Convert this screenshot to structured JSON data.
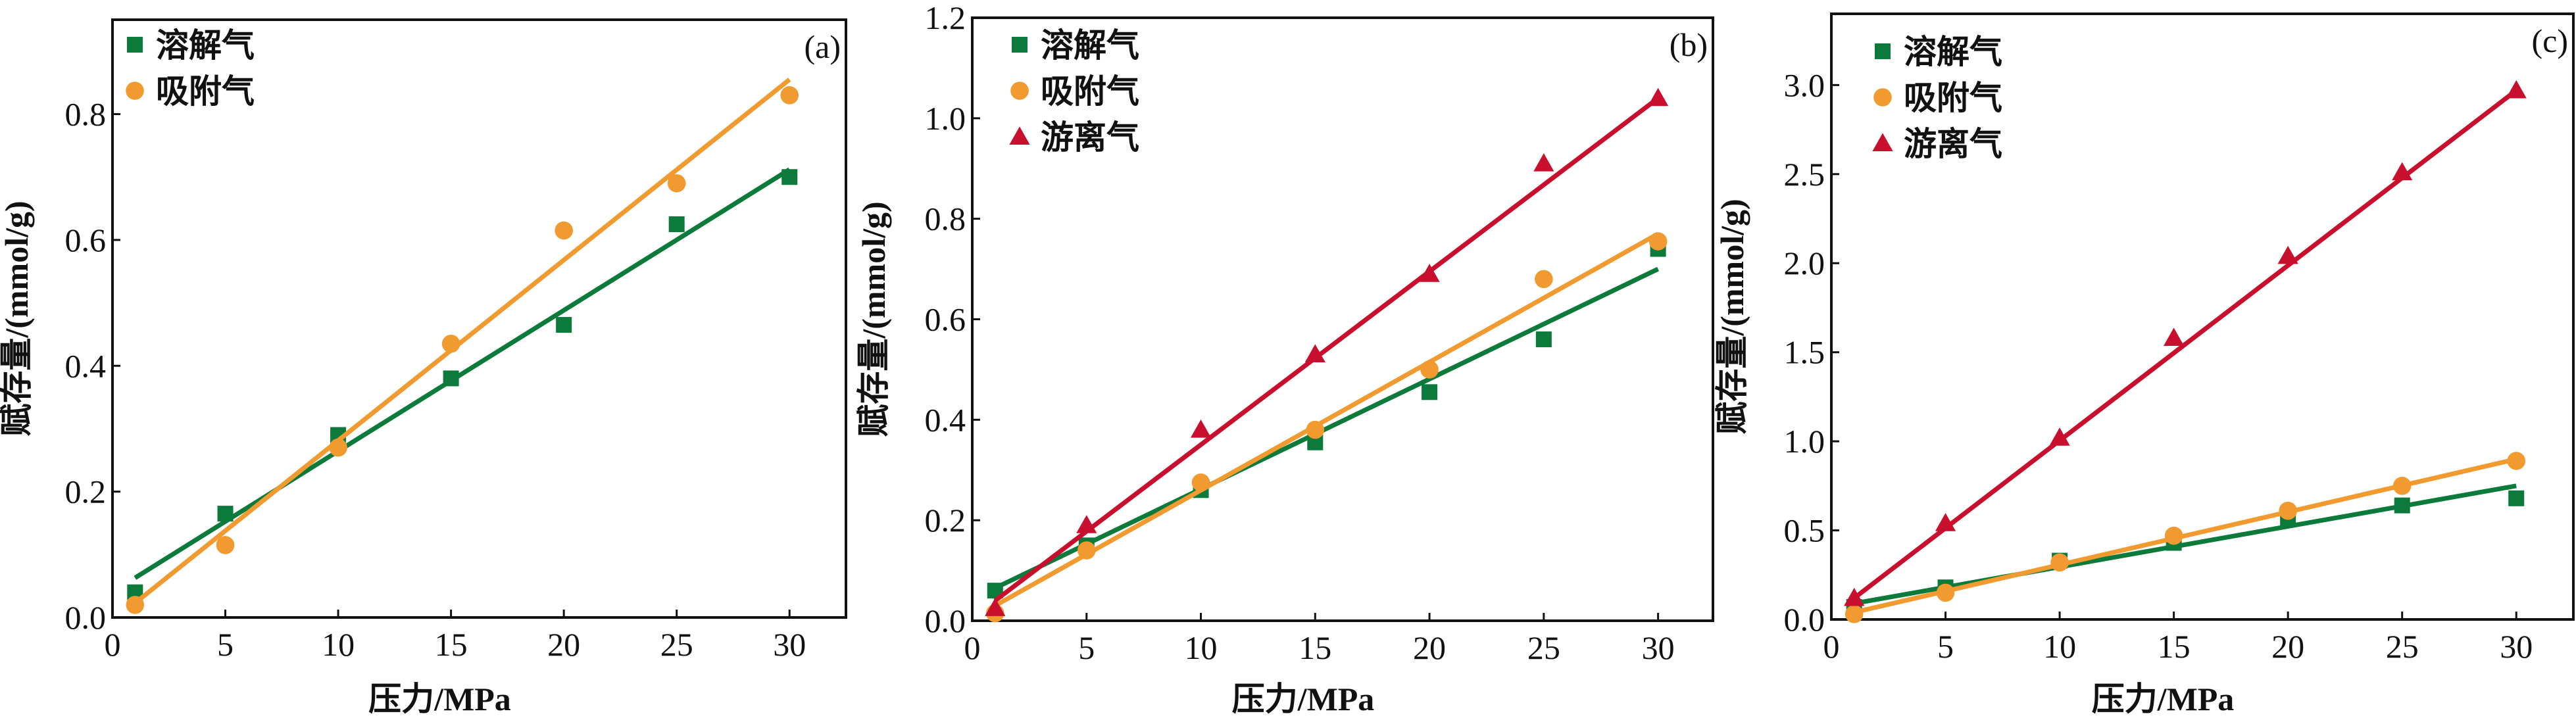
{
  "colors": {
    "dissolved": "#0b7a3b",
    "adsorbed": "#f09a30",
    "free": "#c8102e",
    "axis": "#111111"
  },
  "chart_data": [
    {
      "type": "scatter",
      "panel_label": "(a)",
      "xlabel": "压力/MPa",
      "ylabel": "赋存量/(mmol/g)",
      "xlim": [
        0,
        32.5
      ],
      "ylim": [
        0,
        0.95
      ],
      "xticks": [
        "0",
        "5",
        "10",
        "15",
        "20",
        "25",
        "30"
      ],
      "xtick_values": [
        0,
        5,
        10,
        15,
        20,
        25,
        30
      ],
      "yticks": [
        "0.0",
        "0.2",
        "0.4",
        "0.6",
        "0.8"
      ],
      "ytick_values": [
        0,
        0.2,
        0.4,
        0.6,
        0.8
      ],
      "legend_position": "top-left",
      "series": [
        {
          "name": "溶解气",
          "key": "dissolved",
          "marker": "square",
          "x": [
            1,
            5,
            10,
            15,
            20,
            25,
            30
          ],
          "y": [
            0.04,
            0.165,
            0.29,
            0.38,
            0.465,
            0.625,
            0.7
          ],
          "fit": [
            [
              1,
              0.063
            ],
            [
              30,
              0.712
            ]
          ]
        },
        {
          "name": "吸附气",
          "key": "adsorbed",
          "marker": "circle",
          "x": [
            1,
            5,
            10,
            15,
            20,
            25,
            30
          ],
          "y": [
            0.02,
            0.115,
            0.27,
            0.435,
            0.615,
            0.69,
            0.83
          ],
          "fit": [
            [
              1,
              0.023
            ],
            [
              30,
              0.855
            ]
          ]
        }
      ]
    },
    {
      "type": "scatter",
      "panel_label": "(b)",
      "xlabel": "压力/MPa",
      "ylabel": "赋存量/(mmol/g)",
      "xlim": [
        0,
        32.4
      ],
      "ylim": [
        0,
        1.2
      ],
      "xticks": [
        "0",
        "5",
        "10",
        "15",
        "20",
        "25",
        "30"
      ],
      "xtick_values": [
        0,
        5,
        10,
        15,
        20,
        25,
        30
      ],
      "yticks": [
        "0.0",
        "0.2",
        "0.4",
        "0.6",
        "0.8",
        "1.0",
        "1.2"
      ],
      "ytick_values": [
        0,
        0.2,
        0.4,
        0.6,
        0.8,
        1.0,
        1.2
      ],
      "legend_position": "top-left",
      "series": [
        {
          "name": "溶解气",
          "key": "dissolved",
          "marker": "square",
          "x": [
            1,
            5,
            10,
            15,
            20,
            25,
            30
          ],
          "y": [
            0.06,
            0.15,
            0.26,
            0.355,
            0.455,
            0.56,
            0.74
          ],
          "fit": [
            [
              1,
              0.065
            ],
            [
              30,
              0.7
            ]
          ]
        },
        {
          "name": "吸附气",
          "key": "adsorbed",
          "marker": "circle",
          "x": [
            1,
            5,
            10,
            15,
            20,
            25,
            30
          ],
          "y": [
            0.015,
            0.14,
            0.275,
            0.38,
            0.5,
            0.68,
            0.755
          ],
          "fit": [
            [
              1,
              0.03
            ],
            [
              30,
              0.77
            ]
          ]
        },
        {
          "name": "游离气",
          "key": "free",
          "marker": "triangle",
          "x": [
            1,
            5,
            10,
            15,
            20,
            25,
            30
          ],
          "y": [
            0.025,
            0.19,
            0.38,
            0.53,
            0.69,
            0.91,
            1.04
          ],
          "fit": [
            [
              1,
              0.04
            ],
            [
              30,
              1.04
            ]
          ]
        }
      ]
    },
    {
      "type": "scatter",
      "panel_label": "(c)",
      "xlabel": "压力/MPa",
      "ylabel": "赋存量/(mmol/g)",
      "xlim": [
        0,
        32.5
      ],
      "ylim": [
        0,
        3.4
      ],
      "xticks": [
        "0",
        "5",
        "10",
        "15",
        "20",
        "25",
        "30"
      ],
      "xtick_values": [
        0,
        5,
        10,
        15,
        20,
        25,
        30
      ],
      "yticks": [
        "0.0",
        "0.5",
        "1.0",
        "1.5",
        "2.0",
        "2.5",
        "3.0"
      ],
      "ytick_values": [
        0,
        0.5,
        1.0,
        1.5,
        2.0,
        2.5,
        3.0
      ],
      "legend_position": "top-left",
      "series": [
        {
          "name": "溶解气",
          "key": "dissolved",
          "marker": "square",
          "x": [
            1,
            5,
            10,
            15,
            20,
            25,
            30
          ],
          "y": [
            0.07,
            0.18,
            0.33,
            0.43,
            0.57,
            0.64,
            0.68
          ],
          "fit": [
            [
              1,
              0.09
            ],
            [
              30,
              0.75
            ]
          ]
        },
        {
          "name": "吸附气",
          "key": "adsorbed",
          "marker": "circle",
          "x": [
            1,
            5,
            10,
            15,
            20,
            25,
            30
          ],
          "y": [
            0.03,
            0.15,
            0.32,
            0.47,
            0.61,
            0.75,
            0.89
          ],
          "fit": [
            [
              1,
              0.04
            ],
            [
              30,
              0.9
            ]
          ]
        },
        {
          "name": "游离气",
          "key": "free",
          "marker": "triangle",
          "x": [
            1,
            5,
            10,
            15,
            20,
            25,
            30
          ],
          "y": [
            0.12,
            0.54,
            1.02,
            1.58,
            2.04,
            2.51,
            2.97
          ],
          "fit": [
            [
              1,
              0.12
            ],
            [
              30,
              2.97
            ]
          ]
        }
      ]
    }
  ]
}
